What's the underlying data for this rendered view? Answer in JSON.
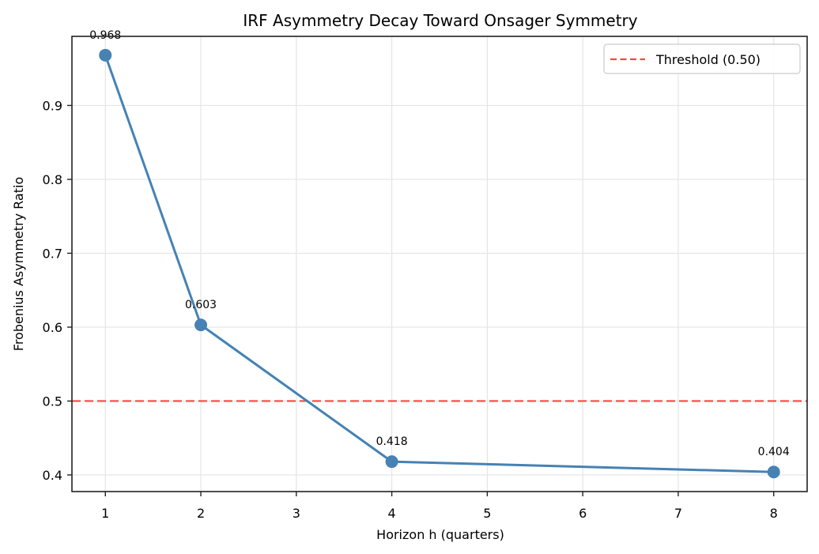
{
  "chart_data": {
    "type": "line",
    "title": "IRF Asymmetry Decay Toward Onsager Symmetry",
    "xlabel": "Horizon h (quarters)",
    "ylabel": "Frobenius Asymmetry Ratio",
    "x": [
      1,
      2,
      4,
      8
    ],
    "series": [
      {
        "name": "Frobenius Asymmetry Ratio",
        "values": [
          0.968,
          0.603,
          0.418,
          0.404
        ],
        "labels": [
          "0.968",
          "0.603",
          "0.418",
          "0.404"
        ],
        "color": "#4682b4",
        "marker": "circle"
      }
    ],
    "reference_lines": [
      {
        "type": "horizontal",
        "y": 0.5,
        "label": "Threshold (0.50)",
        "color": "#ff4444",
        "style": "dashed"
      }
    ],
    "xticks": [
      "1",
      "2",
      "3",
      "4",
      "5",
      "6",
      "7",
      "8"
    ],
    "yticks": [
      "0.4",
      "0.5",
      "0.6",
      "0.7",
      "0.8",
      "0.9"
    ],
    "xlim": [
      0.65,
      8.35
    ],
    "ylim": [
      0.3775,
      0.9935
    ],
    "grid": true,
    "legend_position": "upper right"
  },
  "legend": {
    "items": [
      {
        "label": "Threshold (0.50)",
        "color": "#ff4444"
      }
    ]
  }
}
